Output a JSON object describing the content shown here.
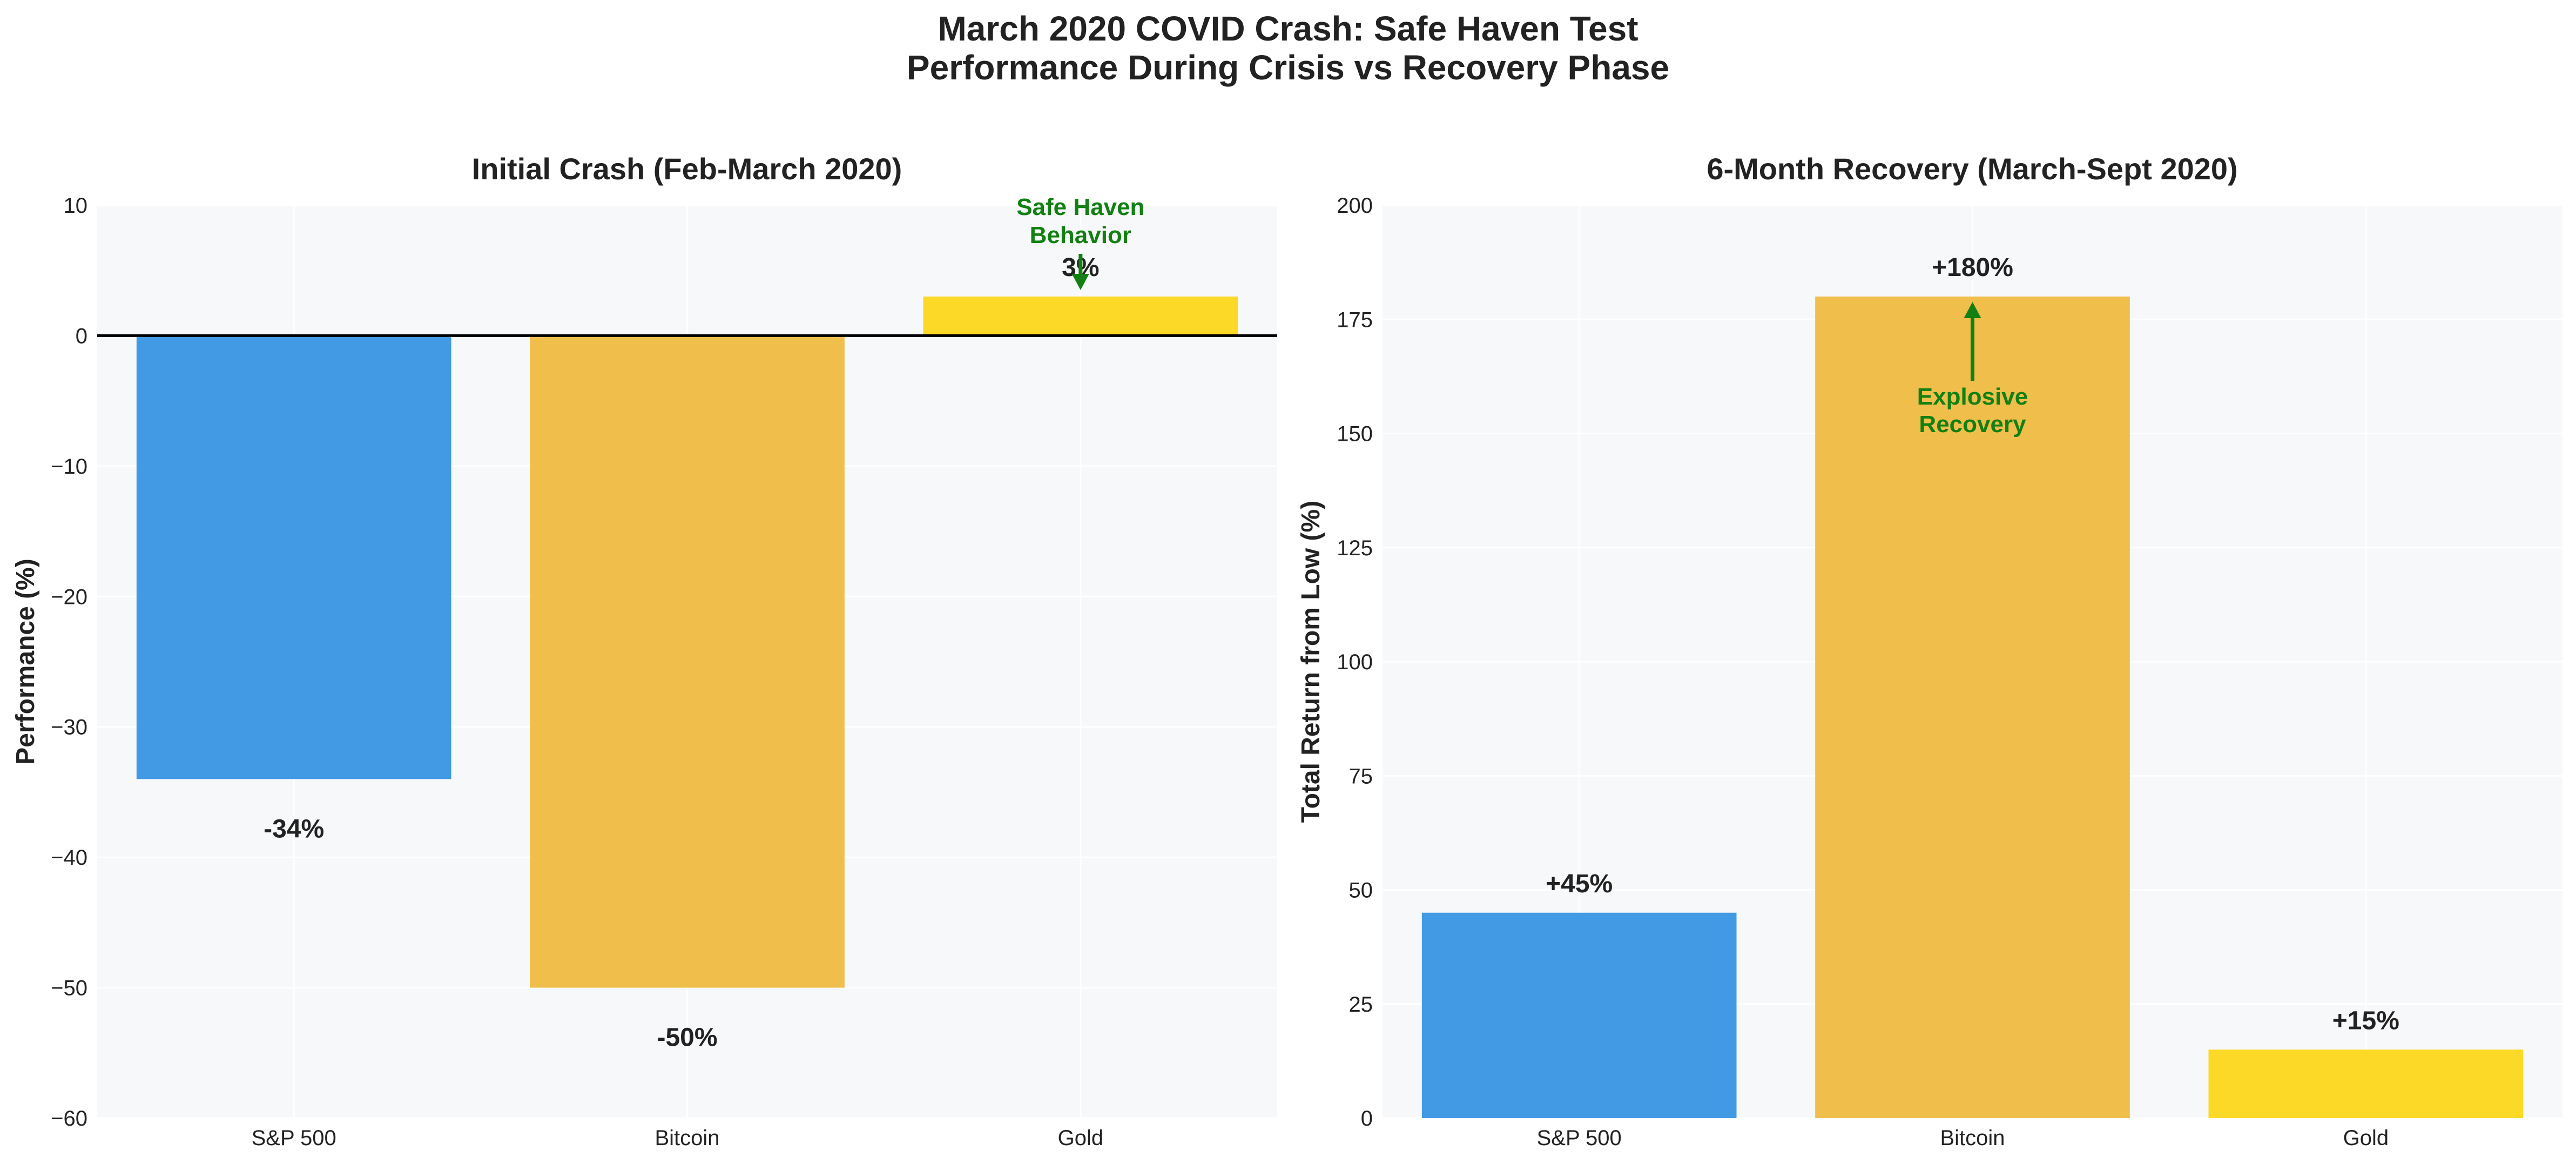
{
  "figure": {
    "title_line1": "March 2020 COVID Crash: Safe Haven Test",
    "title_line2": "Performance During Crisis vs Recovery Phase"
  },
  "chart_data": [
    {
      "type": "bar",
      "title": "Initial Crash (Feb-March 2020)",
      "xlabel": "",
      "ylabel": "Performance (%)",
      "categories": [
        "S&P 500",
        "Bitcoin",
        "Gold"
      ],
      "values": [
        -34,
        -50,
        3
      ],
      "data_labels": [
        "-34%",
        "-50%",
        "3%"
      ],
      "colors": [
        "#4299e4",
        "#f0be4a",
        "#fdd927"
      ],
      "ylim": [
        -60,
        10
      ],
      "yticks": [
        10,
        0,
        -10,
        -20,
        -30,
        -40,
        -50,
        -60
      ],
      "ytick_labels": [
        "10",
        "0",
        "−10",
        "−20",
        "−30",
        "−40",
        "−50",
        "−60"
      ],
      "zero_line": true,
      "grid": true,
      "annotation": {
        "text_line1": "Safe Haven",
        "text_line2": "Behavior",
        "target_category": "Gold",
        "arrow": "down",
        "color": "#128012"
      }
    },
    {
      "type": "bar",
      "title": "6-Month Recovery (March-Sept 2020)",
      "xlabel": "",
      "ylabel": "Total Return from Low (%)",
      "categories": [
        "S&P 500",
        "Bitcoin",
        "Gold"
      ],
      "values": [
        45,
        180,
        15
      ],
      "data_labels": [
        "+45%",
        "+180%",
        "+15%"
      ],
      "colors": [
        "#4299e4",
        "#f0be4a",
        "#fdd927"
      ],
      "ylim": [
        0,
        200
      ],
      "yticks": [
        0,
        25,
        50,
        75,
        100,
        125,
        150,
        175,
        200
      ],
      "ytick_labels": [
        "0",
        "25",
        "50",
        "75",
        "100",
        "125",
        "150",
        "175",
        "200"
      ],
      "zero_line": false,
      "grid": true,
      "annotation": {
        "text_line1": "Explosive",
        "text_line2": "Recovery",
        "target_category": "Bitcoin",
        "arrow": "up",
        "color": "#128012"
      }
    }
  ]
}
